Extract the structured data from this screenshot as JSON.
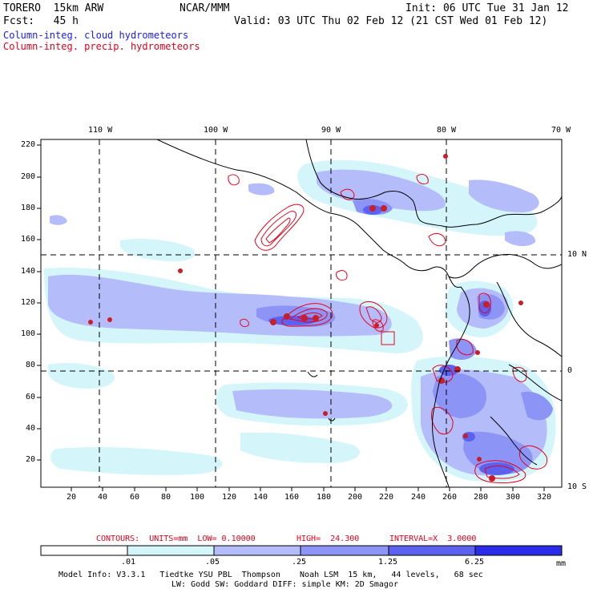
{
  "header": {
    "model": "TORERO  15km ARW",
    "org": "NCAR/MMM",
    "init": "Init: 06 UTC Tue 31 Jan 12",
    "fcst": "Fcst:   45 h",
    "valid": "Valid: 03 UTC Thu 02 Feb 12 (21 CST Wed 01 Feb 12)",
    "field1": "Column-integ. cloud hydrometeors",
    "field2": "Column-integ. precip. hydrometeors"
  },
  "colors": {
    "field1": "#1a1aff",
    "field2": "#e0001b",
    "contour": "#e8001c",
    "coast": "#000000",
    "bins": [
      "#ffffff",
      "#d4f6fb",
      "#b4bcf9",
      "#8c95f6",
      "#5c62ef",
      "#2b2bea"
    ]
  },
  "axes": {
    "top_labels": [
      "110 W",
      "100 W",
      "90 W",
      "80 W",
      "70 W"
    ],
    "right_labels": [
      "10 N",
      "0",
      "10 S"
    ],
    "y_ticks": [
      "220",
      "200",
      "180",
      "160",
      "140",
      "120",
      "100",
      "80",
      "60",
      "40",
      "20"
    ],
    "x_ticks": [
      "20",
      "40",
      "60",
      "80",
      "100",
      "120",
      "140",
      "160",
      "180",
      "200",
      "220",
      "240",
      "260",
      "280",
      "300",
      "320"
    ]
  },
  "contours": {
    "label": "CONTOURS:  UNITS=mm  LOW= 0.10000",
    "high": "HIGH=  24.300",
    "interval": "INTERVAL=X  3.0000"
  },
  "colorbar": {
    "ticks": [
      ".01",
      ".05",
      ".25",
      "1.25",
      "6.25"
    ],
    "unit": "mm"
  },
  "footer": {
    "line1": "Model Info: V3.3.1   Tiedtke YSU PBL  Thompson    Noah LSM  15 km,   44 levels,   68 sec",
    "line2": "LW: Godd SW: Goddard DIFF: simple KM: 2D Smagor"
  }
}
